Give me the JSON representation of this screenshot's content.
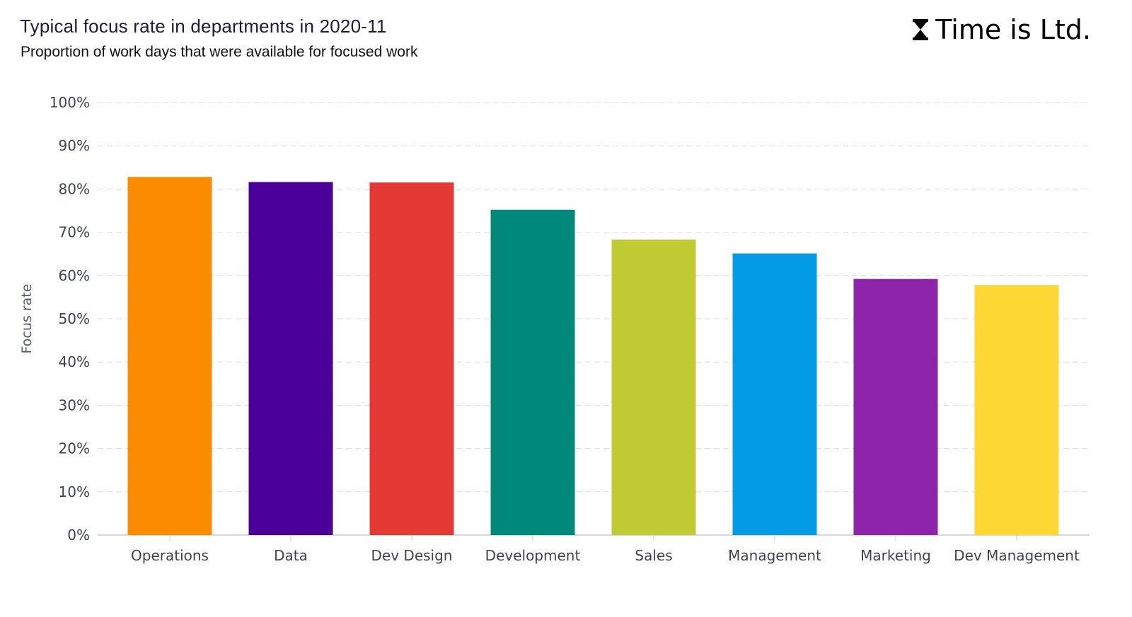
{
  "header": {
    "title": "Typical focus rate in departments in 2020-11",
    "subtitle": "Proportion of work days that were available for focused work"
  },
  "logo": {
    "text": "Time is Ltd.",
    "icon": "hourglass-icon"
  },
  "chart_data": {
    "type": "bar",
    "title": "Typical focus rate in departments in 2020-11",
    "subtitle": "Proportion of work days that were available for focused work",
    "xlabel": "",
    "ylabel": "Focus rate",
    "ylim": [
      0,
      100
    ],
    "yticks": [
      "0%",
      "10%",
      "20%",
      "30%",
      "40%",
      "50%",
      "60%",
      "70%",
      "80%",
      "90%",
      "100%"
    ],
    "grid": true,
    "categories": [
      "Operations",
      "Data",
      "Dev Design",
      "Development",
      "Sales",
      "Management",
      "Marketing",
      "Dev Management"
    ],
    "values": [
      82.8,
      81.6,
      81.5,
      75.2,
      68.3,
      65.1,
      59.2,
      57.8
    ],
    "colors": [
      "#fb8c00",
      "#4a0099",
      "#e53935",
      "#00897b",
      "#c0ca33",
      "#039be5",
      "#8e24aa",
      "#fdd835"
    ]
  }
}
